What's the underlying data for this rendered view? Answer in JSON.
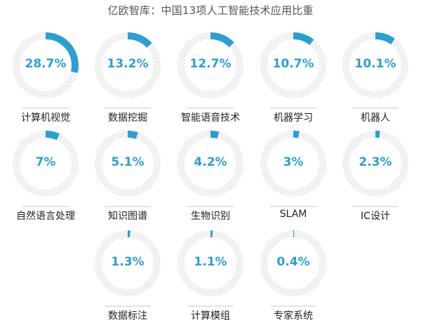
{
  "title": "亿欧智库：中国13项人工智能技术应用比重",
  "colors": {
    "accent": "#2a9fd4",
    "track": "#cfcfcf",
    "label": "#222222",
    "title": "#555555"
  },
  "items": [
    {
      "label": "计算机视觉",
      "value": 28.7,
      "display": "28.7%"
    },
    {
      "label": "数据挖掘",
      "value": 13.2,
      "display": "13.2%"
    },
    {
      "label": "智能语音技术",
      "value": 12.7,
      "display": "12.7%"
    },
    {
      "label": "机器学习",
      "value": 10.7,
      "display": "10.7%"
    },
    {
      "label": "机器人",
      "value": 10.1,
      "display": "10.1%"
    },
    {
      "label": "自然语言处理",
      "value": 7,
      "display": "7%"
    },
    {
      "label": "知识图谱",
      "value": 5.1,
      "display": "5.1%"
    },
    {
      "label": "生物识别",
      "value": 4.2,
      "display": "4.2%"
    },
    {
      "label": "SLAM",
      "value": 3,
      "display": "3%"
    },
    {
      "label": "IC设计",
      "value": 2.3,
      "display": "2.3%"
    },
    {
      "label": "数据标注",
      "value": 1.3,
      "display": "1.3%"
    },
    {
      "label": "计算模组",
      "value": 1.1,
      "display": "1.1%"
    },
    {
      "label": "专家系统",
      "value": 0.4,
      "display": "0.4%"
    }
  ],
  "chart_data": {
    "type": "pie",
    "subtype": "donut-grid",
    "title": "亿欧智库：中国13项人工智能技术应用比重",
    "categories": [
      "计算机视觉",
      "数据挖掘",
      "智能语音技术",
      "机器学习",
      "机器人",
      "自然语言处理",
      "知识图谱",
      "生物识别",
      "SLAM",
      "IC设计",
      "数据标注",
      "计算模组",
      "专家系统"
    ],
    "values": [
      28.7,
      13.2,
      12.7,
      10.7,
      10.1,
      7,
      5.1,
      4.2,
      3,
      2.3,
      1.3,
      1.1,
      0.4
    ],
    "unit": "%",
    "layout": {
      "rows": 3,
      "columns": 5,
      "legend": "none",
      "grid": false
    }
  }
}
